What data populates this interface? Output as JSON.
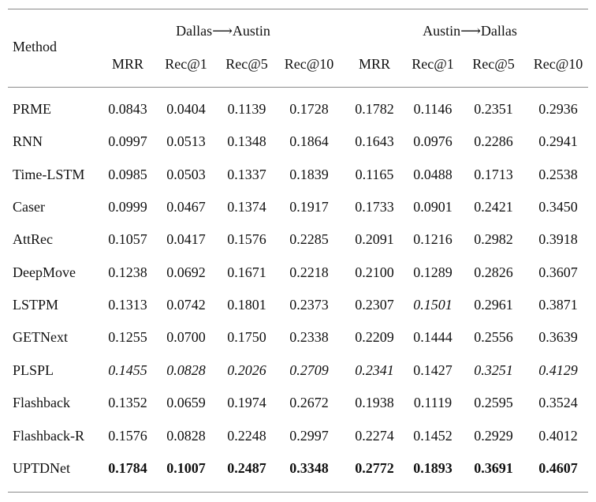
{
  "table": {
    "method_header": "Method",
    "groups": [
      "Dallas⟶Austin",
      "Austin⟶Dallas"
    ],
    "metrics": [
      "MRR",
      "Rec@1",
      "Rec@5",
      "Rec@10",
      "MRR",
      "Rec@1",
      "Rec@5",
      "Rec@10"
    ],
    "rows": [
      {
        "method": "PRME",
        "values": [
          "0.0843",
          "0.0404",
          "0.1139",
          "0.1728",
          "0.1782",
          "0.1146",
          "0.2351",
          "0.2936"
        ],
        "style": [
          "",
          "",
          "",
          "",
          "",
          "",
          "",
          ""
        ]
      },
      {
        "method": "RNN",
        "values": [
          "0.0997",
          "0.0513",
          "0.1348",
          "0.1864",
          "0.1643",
          "0.0976",
          "0.2286",
          "0.2941"
        ],
        "style": [
          "",
          "",
          "",
          "",
          "",
          "",
          "",
          ""
        ]
      },
      {
        "method": "Time-LSTM",
        "values": [
          "0.0985",
          "0.0503",
          "0.1337",
          "0.1839",
          "0.1165",
          "0.0488",
          "0.1713",
          "0.2538"
        ],
        "style": [
          "",
          "",
          "",
          "",
          "",
          "",
          "",
          ""
        ]
      },
      {
        "method": "Caser",
        "values": [
          "0.0999",
          "0.0467",
          "0.1374",
          "0.1917",
          "0.1733",
          "0.0901",
          "0.2421",
          "0.3450"
        ],
        "style": [
          "",
          "",
          "",
          "",
          "",
          "",
          "",
          ""
        ]
      },
      {
        "method": "AttRec",
        "values": [
          "0.1057",
          "0.0417",
          "0.1576",
          "0.2285",
          "0.2091",
          "0.1216",
          "0.2982",
          "0.3918"
        ],
        "style": [
          "",
          "",
          "",
          "",
          "",
          "",
          "",
          ""
        ]
      },
      {
        "method": "DeepMove",
        "values": [
          "0.1238",
          "0.0692",
          "0.1671",
          "0.2218",
          "0.2100",
          "0.1289",
          "0.2826",
          "0.3607"
        ],
        "style": [
          "",
          "",
          "",
          "",
          "",
          "",
          "",
          ""
        ]
      },
      {
        "method": "LSTPM",
        "values": [
          "0.1313",
          "0.0742",
          "0.1801",
          "0.2373",
          "0.2307",
          "0.1501",
          "0.2961",
          "0.3871"
        ],
        "style": [
          "",
          "",
          "",
          "",
          "",
          "it",
          "",
          ""
        ]
      },
      {
        "method": "GETNext",
        "values": [
          "0.1255",
          "0.0700",
          "0.1750",
          "0.2338",
          "0.2209",
          "0.1444",
          "0.2556",
          "0.3639"
        ],
        "style": [
          "",
          "",
          "",
          "",
          "",
          "",
          "",
          ""
        ]
      },
      {
        "method": "PLSPL",
        "values": [
          "0.1455",
          "0.0828",
          "0.2026",
          "0.2709",
          "0.2341",
          "0.1427",
          "0.3251",
          "0.4129"
        ],
        "style": [
          "it",
          "it",
          "it",
          "it",
          "it",
          "",
          "it",
          "it"
        ]
      },
      {
        "method": "Flashback",
        "values": [
          "0.1352",
          "0.0659",
          "0.1974",
          "0.2672",
          "0.1938",
          "0.1119",
          "0.2595",
          "0.3524"
        ],
        "style": [
          "",
          "",
          "",
          "",
          "",
          "",
          "",
          ""
        ]
      },
      {
        "method": "Flashback-R",
        "values": [
          "0.1576",
          "0.0828",
          "0.2248",
          "0.2997",
          "0.2274",
          "0.1452",
          "0.2929",
          "0.4012"
        ],
        "style": [
          "",
          "",
          "",
          "",
          "",
          "",
          "",
          ""
        ]
      },
      {
        "method": "UPTDNet",
        "values": [
          "0.1784",
          "0.1007",
          "0.2487",
          "0.3348",
          "0.2772",
          "0.1893",
          "0.3691",
          "0.4607"
        ],
        "style": [
          "bd",
          "bd",
          "bd",
          "bd",
          "bd",
          "bd",
          "bd",
          "bd"
        ]
      }
    ]
  }
}
